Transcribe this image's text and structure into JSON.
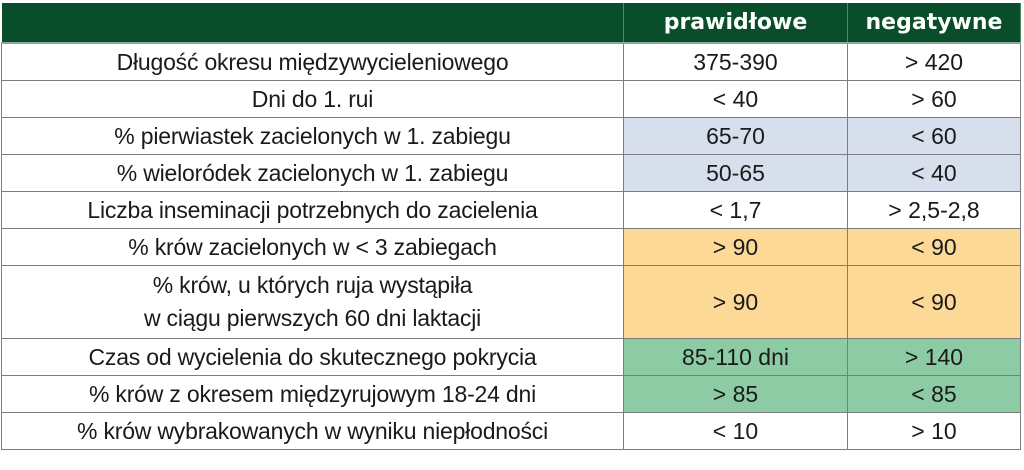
{
  "header": {
    "columns": [
      "",
      "prawidłowe",
      "negatywne"
    ]
  },
  "colors": {
    "header_bg": "#0a4d2a",
    "blue": "#d7deec",
    "orange": "#fdd997",
    "green": "#8dcba5",
    "white": "#ffffff"
  },
  "rows": [
    {
      "label": "Długość okresu międzywycieleniowego",
      "label_line2": "",
      "prawidlowe": "375-390",
      "negatywne": "> 420",
      "shade": "white"
    },
    {
      "label": "Dni do 1. rui",
      "label_line2": "",
      "prawidlowe": "< 40",
      "negatywne": "> 60",
      "shade": "white"
    },
    {
      "label": "% pierwiastek zacielonych w 1. zabiegu",
      "label_line2": "",
      "prawidlowe": "65-70",
      "negatywne": "< 60",
      "shade": "blue"
    },
    {
      "label": "% wieloródek zacielonych w 1. zabiegu",
      "label_line2": "",
      "prawidlowe": "50-65",
      "negatywne": "< 40",
      "shade": "blue"
    },
    {
      "label": "Liczba inseminacji potrzebnych do zacielenia",
      "label_line2": "",
      "prawidlowe": "< 1,7",
      "negatywne": "> 2,5-2,8",
      "shade": "white"
    },
    {
      "label": "% krów zacielonych w < 3 zabiegach",
      "label_line2": "",
      "prawidlowe": "> 90",
      "negatywne": "< 90",
      "shade": "orange"
    },
    {
      "label": "% krów, u których ruja wystąpiła",
      "label_line2": "w ciągu pierwszych 60 dni laktacji",
      "prawidlowe": "> 90",
      "negatywne": "< 90",
      "shade": "orange"
    },
    {
      "label": "Czas od wycielenia do skutecznego pokrycia",
      "label_line2": "",
      "prawidlowe": "85-110 dni",
      "negatywne": "> 140",
      "shade": "green"
    },
    {
      "label": "% krów z okresem międzyrujowym 18-24 dni",
      "label_line2": "",
      "prawidlowe": "> 85",
      "negatywne": "< 85",
      "shade": "green"
    },
    {
      "label": "% krów wybrakowanych w wyniku niepłodności",
      "label_line2": "",
      "prawidlowe": "< 10",
      "negatywne": "> 10",
      "shade": "white"
    }
  ]
}
